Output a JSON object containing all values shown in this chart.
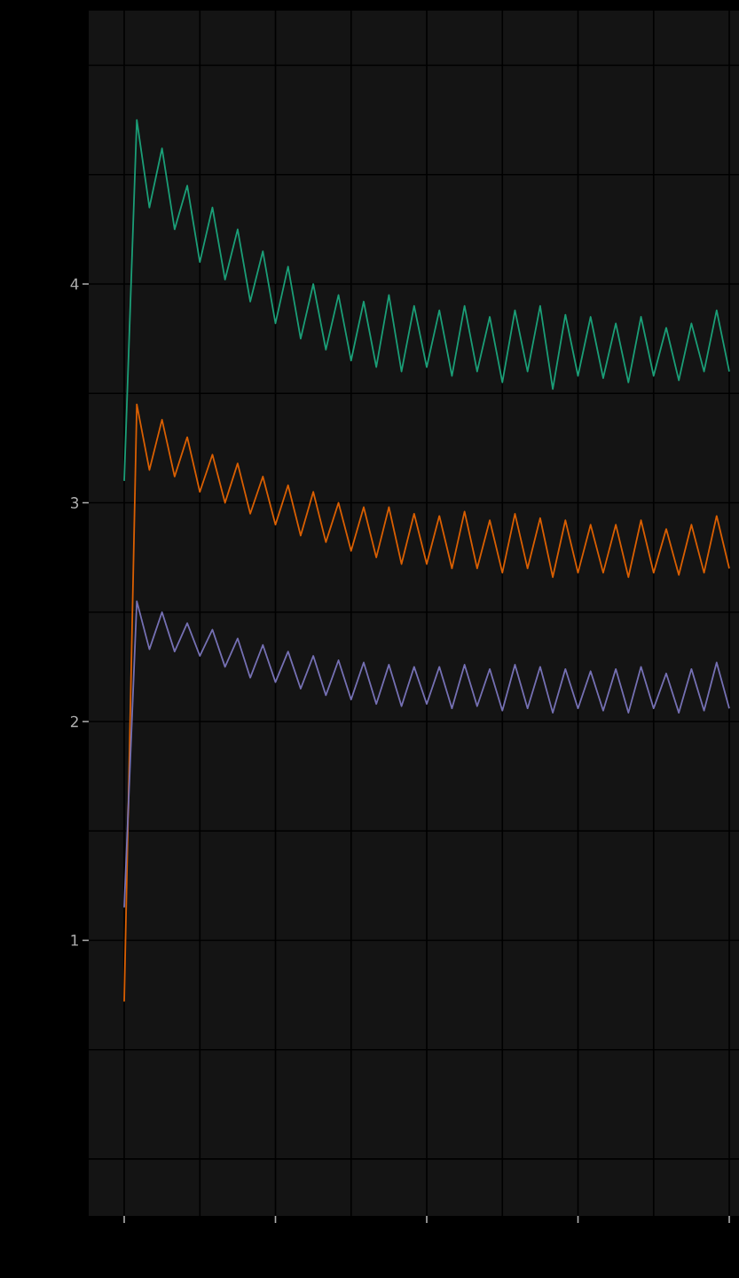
{
  "chart_data": {
    "type": "line",
    "categories": [
      null,
      null,
      null,
      null,
      null,
      null,
      null,
      null,
      null,
      null,
      null,
      null,
      null,
      null,
      null,
      null,
      null,
      null,
      null,
      null,
      null,
      null,
      null,
      null,
      null,
      null,
      null,
      null,
      null,
      null,
      null,
      null,
      null,
      null,
      null,
      null,
      null,
      null,
      null,
      null,
      null,
      null,
      null,
      null,
      null,
      null,
      null,
      null,
      null
    ],
    "series": [
      {
        "color": "#1b9e77",
        "values": [
          3.1,
          4.75,
          4.35,
          4.62,
          4.25,
          4.45,
          4.1,
          4.35,
          4.02,
          4.25,
          3.92,
          4.15,
          3.82,
          4.08,
          3.75,
          4.0,
          3.7,
          3.95,
          3.65,
          3.92,
          3.62,
          3.95,
          3.6,
          3.9,
          3.62,
          3.88,
          3.58,
          3.9,
          3.6,
          3.85,
          3.55,
          3.88,
          3.6,
          3.9,
          3.52,
          3.86,
          3.58,
          3.85,
          3.57,
          3.82,
          3.55,
          3.85,
          3.58,
          3.8,
          3.56,
          3.82,
          3.6,
          3.88,
          3.6
        ]
      },
      {
        "color": "#d95f02",
        "values": [
          0.72,
          3.45,
          3.15,
          3.38,
          3.12,
          3.3,
          3.05,
          3.22,
          3.0,
          3.18,
          2.95,
          3.12,
          2.9,
          3.08,
          2.85,
          3.05,
          2.82,
          3.0,
          2.78,
          2.98,
          2.75,
          2.98,
          2.72,
          2.95,
          2.72,
          2.94,
          2.7,
          2.96,
          2.7,
          2.92,
          2.68,
          2.95,
          2.7,
          2.93,
          2.66,
          2.92,
          2.68,
          2.9,
          2.68,
          2.9,
          2.66,
          2.92,
          2.68,
          2.88,
          2.67,
          2.9,
          2.68,
          2.94,
          2.7
        ]
      },
      {
        "color": "#7570b3",
        "values": [
          1.15,
          2.55,
          2.33,
          2.5,
          2.32,
          2.45,
          2.3,
          2.42,
          2.25,
          2.38,
          2.2,
          2.35,
          2.18,
          2.32,
          2.15,
          2.3,
          2.12,
          2.28,
          2.1,
          2.27,
          2.08,
          2.26,
          2.07,
          2.25,
          2.08,
          2.25,
          2.06,
          2.26,
          2.07,
          2.24,
          2.05,
          2.26,
          2.06,
          2.25,
          2.04,
          2.24,
          2.06,
          2.23,
          2.05,
          2.24,
          2.04,
          2.25,
          2.06,
          2.22,
          2.04,
          2.24,
          2.05,
          2.27,
          2.06
        ]
      }
    ],
    "ylim": [
      -0.26,
      5.25
    ],
    "yticks": [
      {
        "value": 0,
        "label": null
      },
      {
        "value": 0.5,
        "label": null
      },
      1,
      {
        "value": 1.5,
        "label": null
      },
      2,
      {
        "value": 2.5,
        "label": null
      },
      3,
      {
        "value": 3.5,
        "label": null
      },
      4,
      {
        "value": 4.5,
        "label": null
      },
      {
        "value": 5,
        "label": null
      }
    ],
    "grid": true
  }
}
